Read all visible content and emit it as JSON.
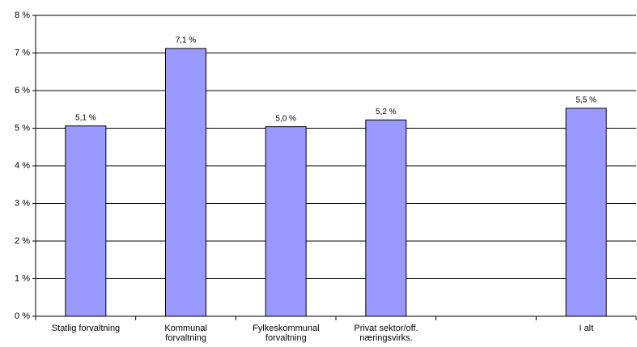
{
  "chart_data": {
    "type": "bar",
    "categories": [
      "Statlig forvaltning",
      "Kommunal\nforvaltning",
      "Fylkeskommunal\nforvaltning",
      "Privat sektor/off.\nnæringsvirks.",
      null,
      "I alt"
    ],
    "values": [
      5.06,
      7.12,
      5.04,
      5.22,
      null,
      5.53
    ],
    "value_labels": [
      "5,1 %",
      "7,1 %",
      "5,0 %",
      "5,2 %",
      null,
      "5,5 %"
    ],
    "color": "#9999ff",
    "ylim": [
      0,
      8
    ],
    "yticks": [
      {
        "value": 0,
        "label": "0 %"
      },
      {
        "value": 1,
        "label": "1 %"
      },
      {
        "value": 2,
        "label": "2 %"
      },
      {
        "value": 3,
        "label": "3 %"
      },
      {
        "value": 4,
        "label": "4 %"
      },
      {
        "value": 5,
        "label": "5 %"
      },
      {
        "value": 6,
        "label": "6 %"
      },
      {
        "value": 7,
        "label": "7 %"
      },
      {
        "value": 8,
        "label": "8 %"
      }
    ],
    "grid": true
  }
}
